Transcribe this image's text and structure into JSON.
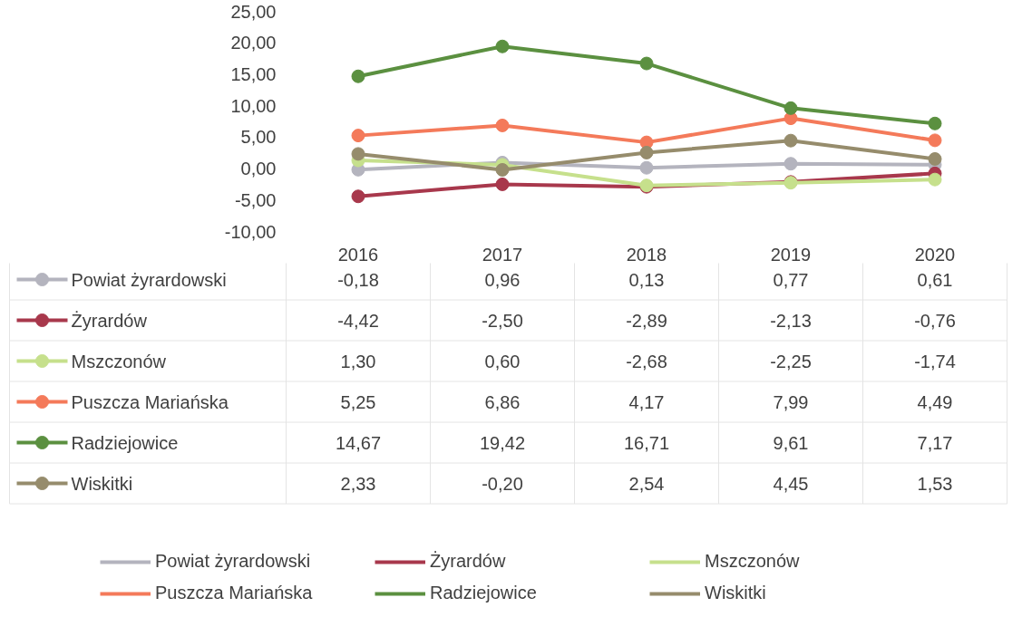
{
  "chart_data": {
    "type": "line",
    "categories": [
      "2016",
      "2017",
      "2018",
      "2019",
      "2020"
    ],
    "ylim": [
      -10,
      25
    ],
    "yticks": [
      {
        "value": -10,
        "label": "-10,00"
      },
      {
        "value": -5,
        "label": "-5,00"
      },
      {
        "value": 0,
        "label": "0,00"
      },
      {
        "value": 5,
        "label": "5,00"
      },
      {
        "value": 10,
        "label": "10,00"
      },
      {
        "value": 15,
        "label": "15,00"
      },
      {
        "value": 20,
        "label": "20,00"
      },
      {
        "value": 25,
        "label": "25,00"
      }
    ],
    "grid": false,
    "legend": "bottom",
    "marker": "circle",
    "line_style": "solid",
    "series": [
      {
        "name": "Powiat żyrardowski",
        "color": "#b4b4be",
        "values": [
          -0.18,
          0.96,
          0.13,
          0.77,
          0.61
        ],
        "value_labels": [
          "-0,18",
          "0,96",
          "0,13",
          "0,77",
          "0,61"
        ]
      },
      {
        "name": "Żyrardów",
        "color": "#a8384c",
        "values": [
          -4.42,
          -2.5,
          -2.89,
          -2.13,
          -0.76
        ],
        "value_labels": [
          "-4,42",
          "-2,50",
          "-2,89",
          "-2,13",
          "-0,76"
        ]
      },
      {
        "name": "Mszczonów",
        "color": "#c6e08c",
        "values": [
          1.3,
          0.6,
          -2.68,
          -2.25,
          -1.74
        ],
        "value_labels": [
          "1,30",
          "0,60",
          "-2,68",
          "-2,25",
          "-1,74"
        ]
      },
      {
        "name": "Puszcza Mariańska",
        "color": "#f47a5a",
        "values": [
          5.25,
          6.86,
          4.17,
          7.99,
          4.49
        ],
        "value_labels": [
          "5,25",
          "6,86",
          "4,17",
          "7,99",
          "4,49"
        ]
      },
      {
        "name": "Radziejowice",
        "color": "#5b9040",
        "values": [
          14.67,
          19.42,
          16.71,
          9.61,
          7.17
        ],
        "value_labels": [
          "14,67",
          "19,42",
          "16,71",
          "9,61",
          "7,17"
        ]
      },
      {
        "name": "Wiskitki",
        "color": "#968c6c",
        "values": [
          2.33,
          -0.2,
          2.54,
          4.45,
          1.53
        ],
        "value_labels": [
          "2,33",
          "-0,20",
          "2,54",
          "4,45",
          "1,53"
        ]
      }
    ]
  }
}
